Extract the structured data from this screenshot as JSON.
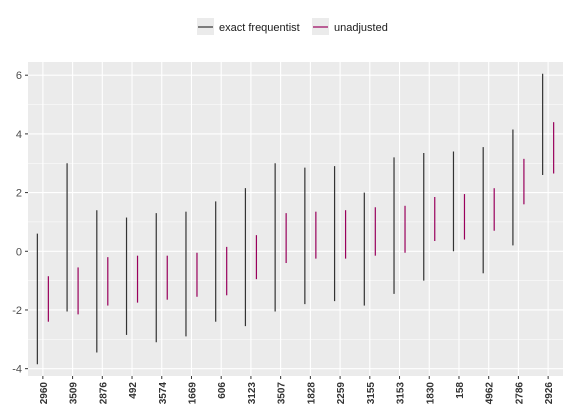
{
  "chart_data": {
    "type": "errorbar",
    "categories": [
      "2960",
      "3509",
      "2876",
      "492",
      "3574",
      "1669",
      "606",
      "3123",
      "3507",
      "1828",
      "2259",
      "3155",
      "3153",
      "1830",
      "158",
      "4962",
      "2786",
      "2926"
    ],
    "series": [
      {
        "name": "exact frequentist",
        "color": "#333333",
        "lower": [
          -3.85,
          -2.05,
          -3.45,
          -2.85,
          -3.1,
          -2.9,
          -2.4,
          -2.55,
          -2.05,
          -1.8,
          -1.7,
          -1.85,
          -1.45,
          -1.0,
          0.0,
          -0.75,
          0.2,
          2.6
        ],
        "upper": [
          0.6,
          3.0,
          1.4,
          1.15,
          1.3,
          1.35,
          1.7,
          2.15,
          3.0,
          2.85,
          2.9,
          2.0,
          3.2,
          3.35,
          3.4,
          3.55,
          4.15,
          6.05
        ]
      },
      {
        "name": "unadjusted",
        "color": "#99005c",
        "lower": [
          -2.4,
          -2.15,
          -1.85,
          -1.75,
          -1.65,
          -1.55,
          -1.5,
          -0.95,
          -0.4,
          -0.25,
          -0.25,
          -0.15,
          -0.05,
          0.35,
          0.4,
          0.7,
          1.6,
          2.65
        ],
        "upper": [
          -0.85,
          -0.55,
          -0.2,
          -0.15,
          -0.15,
          -0.05,
          0.15,
          0.55,
          1.3,
          1.35,
          1.4,
          1.5,
          1.55,
          1.85,
          1.95,
          2.15,
          3.15,
          4.4
        ]
      }
    ],
    "yticks": [
      -4,
      -2,
      0,
      2,
      4,
      6
    ],
    "ylim": [
      -4.25,
      6.45
    ],
    "grid": true,
    "legend_position": "top",
    "xlabel": "",
    "ylabel": "",
    "title": ""
  }
}
